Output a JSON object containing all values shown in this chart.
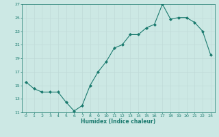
{
  "x": [
    0,
    1,
    2,
    3,
    4,
    5,
    6,
    7,
    8,
    9,
    10,
    11,
    12,
    13,
    14,
    15,
    16,
    17,
    18,
    19,
    20,
    21,
    22,
    23
  ],
  "y": [
    15.5,
    14.5,
    14.0,
    14.0,
    14.0,
    12.5,
    11.2,
    12.0,
    15.0,
    17.0,
    18.5,
    20.5,
    21.0,
    22.5,
    22.5,
    23.5,
    24.0,
    27.0,
    24.8,
    25.0,
    25.0,
    24.3,
    23.0,
    19.5
  ],
  "xlabel": "Humidex (Indice chaleur)",
  "ylim": [
    11,
    27
  ],
  "xlim": [
    -0.5,
    23.5
  ],
  "yticks": [
    11,
    13,
    15,
    17,
    19,
    21,
    23,
    25,
    27
  ],
  "xticks": [
    0,
    1,
    2,
    3,
    4,
    5,
    6,
    7,
    8,
    9,
    10,
    11,
    12,
    13,
    14,
    15,
    16,
    17,
    18,
    19,
    20,
    21,
    22,
    23
  ],
  "line_color": "#1a7a6e",
  "marker_color": "#1a7a6e",
  "bg_color": "#cce8e4",
  "grid_color": "#c0dbd8",
  "axis_color": "#1a7a6e",
  "label_color": "#1a7a6e"
}
